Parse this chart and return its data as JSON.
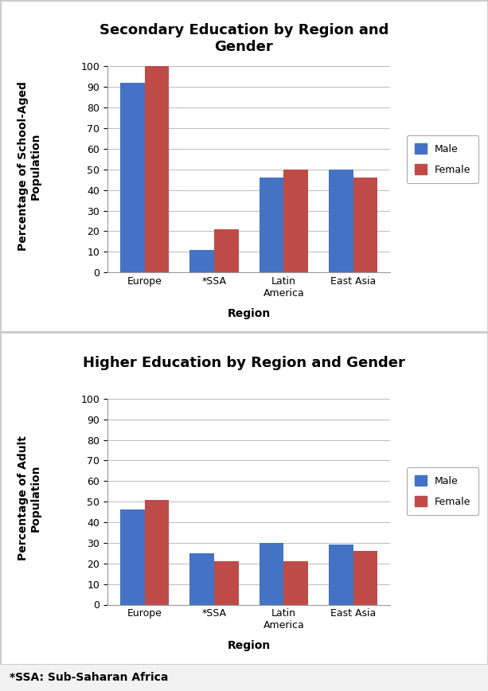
{
  "secondary": {
    "title": "Secondary Education by Region and\nGender",
    "ylabel": "Percentage of School-Aged\nPopulation",
    "xlabel": "Region",
    "categories": [
      "Europe",
      "*SSA",
      "Latin\nAmerica",
      "East Asia"
    ],
    "male_values": [
      92,
      11,
      46,
      50
    ],
    "female_values": [
      100,
      21,
      50,
      46
    ],
    "ylim": [
      0,
      100
    ],
    "yticks": [
      0,
      10,
      20,
      30,
      40,
      50,
      60,
      70,
      80,
      90,
      100
    ]
  },
  "higher": {
    "title": "Higher Education by Region and Gender",
    "ylabel": "Percentage of Adult\nPopulation",
    "xlabel": "Region",
    "categories": [
      "Europe",
      "*SSA",
      "Latin\nAmerica",
      "East Asia"
    ],
    "male_values": [
      46,
      25,
      30,
      29
    ],
    "female_values": [
      51,
      21,
      21,
      26
    ],
    "ylim": [
      0,
      100
    ],
    "yticks": [
      0,
      10,
      20,
      30,
      40,
      50,
      60,
      70,
      80,
      90,
      100
    ]
  },
  "footnote": "*SSA: Sub-Saharan Africa",
  "male_color": "#4472C4",
  "female_color": "#BE4B48",
  "bar_width": 0.35,
  "legend_labels": [
    "Male",
    "Female"
  ],
  "background_color": "#F2F2F2",
  "panel_bg": "#FFFFFF",
  "title_fontsize": 13,
  "axis_label_fontsize": 10,
  "tick_fontsize": 9,
  "legend_fontsize": 9,
  "footnote_fontsize": 10
}
